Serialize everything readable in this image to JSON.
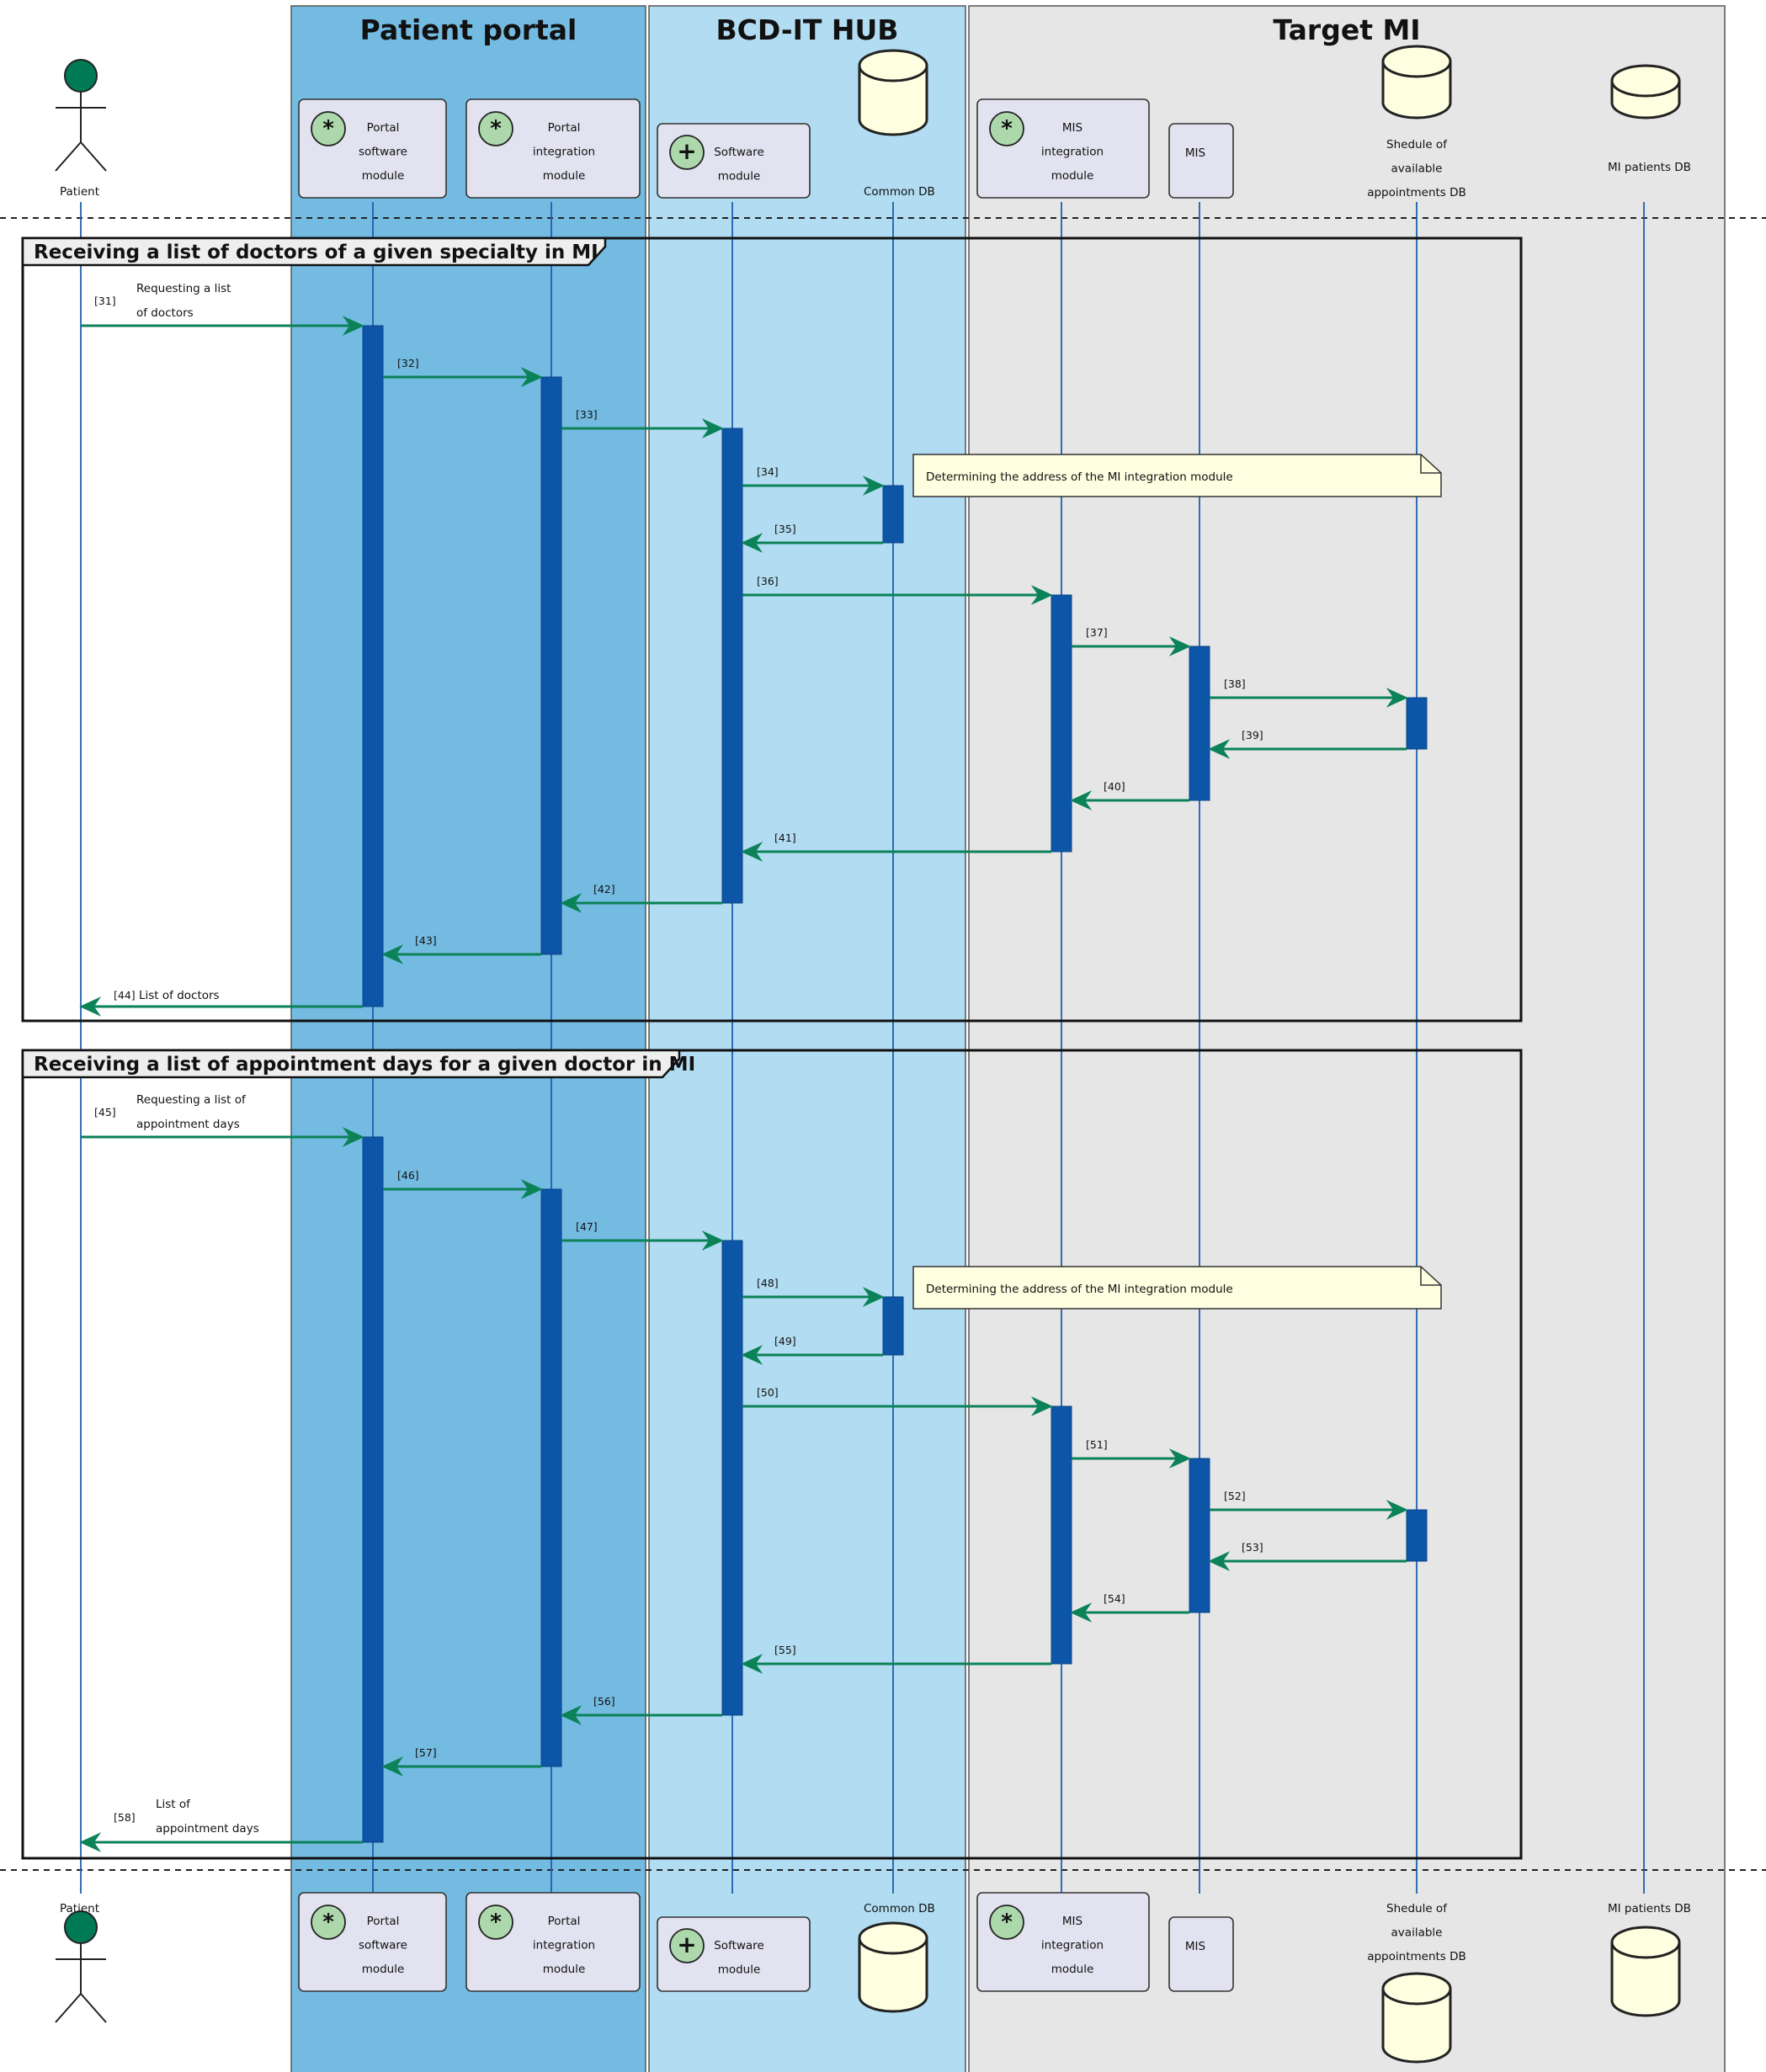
{
  "colors": {
    "portal_box": "#74bbe2",
    "hub_box": "#b1dcf1",
    "target_box": "#e6e6e6",
    "lifeline": "#1d5fb0",
    "activation": "#0d55a7",
    "arrow": "#0b8257",
    "actor_head": "#007a55",
    "participant_fill": "#e2e2f0",
    "database_fill": "#fefee0",
    "note_fill": "#fefee0",
    "spot_fill": "#acd8ac"
  },
  "boxes": [
    {
      "id": "portal",
      "title": "Patient portal"
    },
    {
      "id": "hub",
      "title": "BCD-IT HUB"
    },
    {
      "id": "target",
      "title": "Target MI"
    }
  ],
  "participants": [
    {
      "id": "patient",
      "kind": "actor",
      "label": [
        "Patient"
      ]
    },
    {
      "id": "pps",
      "kind": "module",
      "spot": "*",
      "label": [
        "Portal",
        "software",
        "module"
      ]
    },
    {
      "id": "ppi",
      "kind": "module",
      "spot": "*",
      "label": [
        "Portal",
        "integration",
        "module"
      ]
    },
    {
      "id": "hsw",
      "kind": "module",
      "spot": "+",
      "label": [
        "Software",
        "module"
      ]
    },
    {
      "id": "cdb",
      "kind": "database",
      "label": [
        "Common DB"
      ]
    },
    {
      "id": "misi",
      "kind": "module",
      "spot": "*",
      "label": [
        "MIS",
        "integration",
        "module"
      ]
    },
    {
      "id": "mis",
      "kind": "plain",
      "label": [
        "MIS"
      ]
    },
    {
      "id": "sched",
      "kind": "database",
      "label": [
        "Shedule of",
        "available",
        "appointments DB"
      ]
    },
    {
      "id": "mipdb",
      "kind": "database",
      "label": [
        "MI patients DB"
      ]
    }
  ],
  "frames": [
    {
      "title": "Receiving a list of doctors of a given specialty in MI",
      "note": "Determining the address of the MI integration module",
      "messages": [
        {
          "num": "[31]",
          "from": "patient",
          "to": "pps",
          "label": [
            "Requesting a list",
            "of doctors"
          ]
        },
        {
          "num": "[32]",
          "from": "pps",
          "to": "ppi",
          "label": []
        },
        {
          "num": "[33]",
          "from": "ppi",
          "to": "hsw",
          "label": []
        },
        {
          "num": "[34]",
          "from": "hsw",
          "to": "cdb",
          "label": []
        },
        {
          "num": "[35]",
          "from": "cdb",
          "to": "hsw",
          "label": []
        },
        {
          "num": "[36]",
          "from": "hsw",
          "to": "misi",
          "label": []
        },
        {
          "num": "[37]",
          "from": "misi",
          "to": "mis",
          "label": []
        },
        {
          "num": "[38]",
          "from": "mis",
          "to": "sched",
          "label": []
        },
        {
          "num": "[39]",
          "from": "sched",
          "to": "mis",
          "label": []
        },
        {
          "num": "[40]",
          "from": "mis",
          "to": "misi",
          "label": []
        },
        {
          "num": "[41]",
          "from": "misi",
          "to": "hsw",
          "label": []
        },
        {
          "num": "[42]",
          "from": "hsw",
          "to": "ppi",
          "label": []
        },
        {
          "num": "[43]",
          "from": "ppi",
          "to": "pps",
          "label": []
        },
        {
          "num": "[44]",
          "from": "pps",
          "to": "patient",
          "label": [
            "List of doctors"
          ]
        }
      ]
    },
    {
      "title": "Receiving a list of appointment days for a given doctor in MI",
      "note": "Determining the address of the MI integration module",
      "messages": [
        {
          "num": "[45]",
          "from": "patient",
          "to": "pps",
          "label": [
            "Requesting a list of",
            "appointment days"
          ]
        },
        {
          "num": "[46]",
          "from": "pps",
          "to": "ppi",
          "label": []
        },
        {
          "num": "[47]",
          "from": "ppi",
          "to": "hsw",
          "label": []
        },
        {
          "num": "[48]",
          "from": "hsw",
          "to": "cdb",
          "label": []
        },
        {
          "num": "[49]",
          "from": "cdb",
          "to": "hsw",
          "label": []
        },
        {
          "num": "[50]",
          "from": "hsw",
          "to": "misi",
          "label": []
        },
        {
          "num": "[51]",
          "from": "misi",
          "to": "mis",
          "label": []
        },
        {
          "num": "[52]",
          "from": "mis",
          "to": "sched",
          "label": []
        },
        {
          "num": "[53]",
          "from": "sched",
          "to": "mis",
          "label": []
        },
        {
          "num": "[54]",
          "from": "mis",
          "to": "misi",
          "label": []
        },
        {
          "num": "[55]",
          "from": "misi",
          "to": "hsw",
          "label": []
        },
        {
          "num": "[56]",
          "from": "hsw",
          "to": "ppi",
          "label": []
        },
        {
          "num": "[57]",
          "from": "ppi",
          "to": "pps",
          "label": []
        },
        {
          "num": "[58]",
          "from": "pps",
          "to": "patient",
          "label": [
            "List of",
            "appointment days"
          ]
        }
      ]
    }
  ]
}
